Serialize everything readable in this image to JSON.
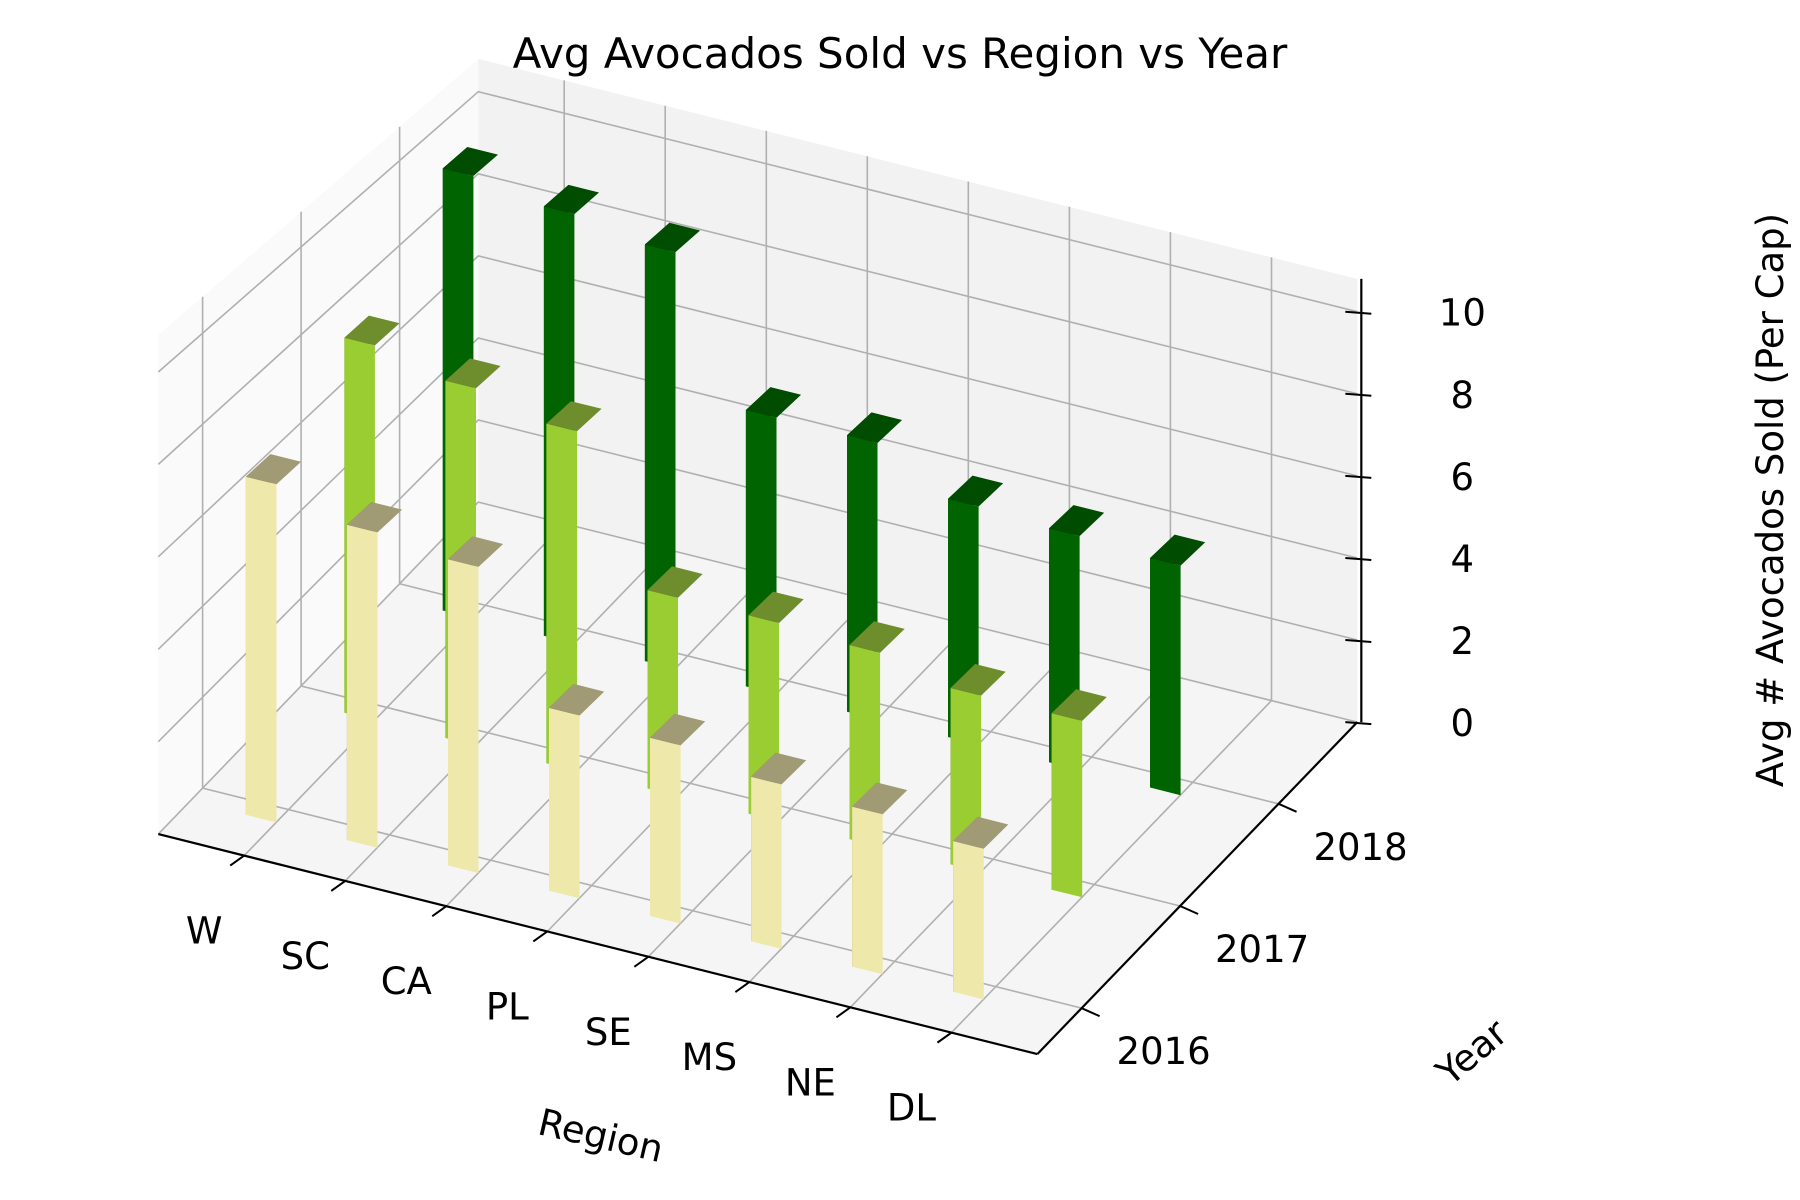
{
  "chart_data": {
    "type": "bar3d",
    "title": "Avg Avocados Sold vs Region vs Year",
    "xlabel": "Region",
    "ylabel": "Year",
    "zlabel": "Avg # Avocados Sold (Per Cap)",
    "categories": [
      "W",
      "SC",
      "CA",
      "PL",
      "SE",
      "MS",
      "NE",
      "DL"
    ],
    "years": [
      "2016",
      "2017",
      "2018"
    ],
    "zlim": [
      0,
      10
    ],
    "zticks": [
      "0",
      "2",
      "4",
      "6",
      "8",
      "10"
    ],
    "grid": true,
    "series": [
      {
        "name": "2016",
        "values": [
          7.4,
          6.9,
          6.7,
          4.0,
          3.9,
          3.6,
          3.5,
          3.3
        ],
        "colors": {
          "front": "#eee8aa",
          "side": "#7a7655",
          "top": "#a09a75"
        }
      },
      {
        "name": "2017",
        "values": [
          8.5,
          8.1,
          7.7,
          4.5,
          4.5,
          4.4,
          4.0,
          4.0
        ],
        "colors": {
          "front": "#9acd32",
          "side": "#4e681a",
          "top": "#6e8d2c"
        }
      },
      {
        "name": "2018",
        "values": [
          10.4,
          10.1,
          9.8,
          6.5,
          6.5,
          5.6,
          5.5,
          5.4
        ],
        "colors": {
          "front": "#006400",
          "side": "#003200",
          "top": "#004c00"
        }
      }
    ]
  }
}
